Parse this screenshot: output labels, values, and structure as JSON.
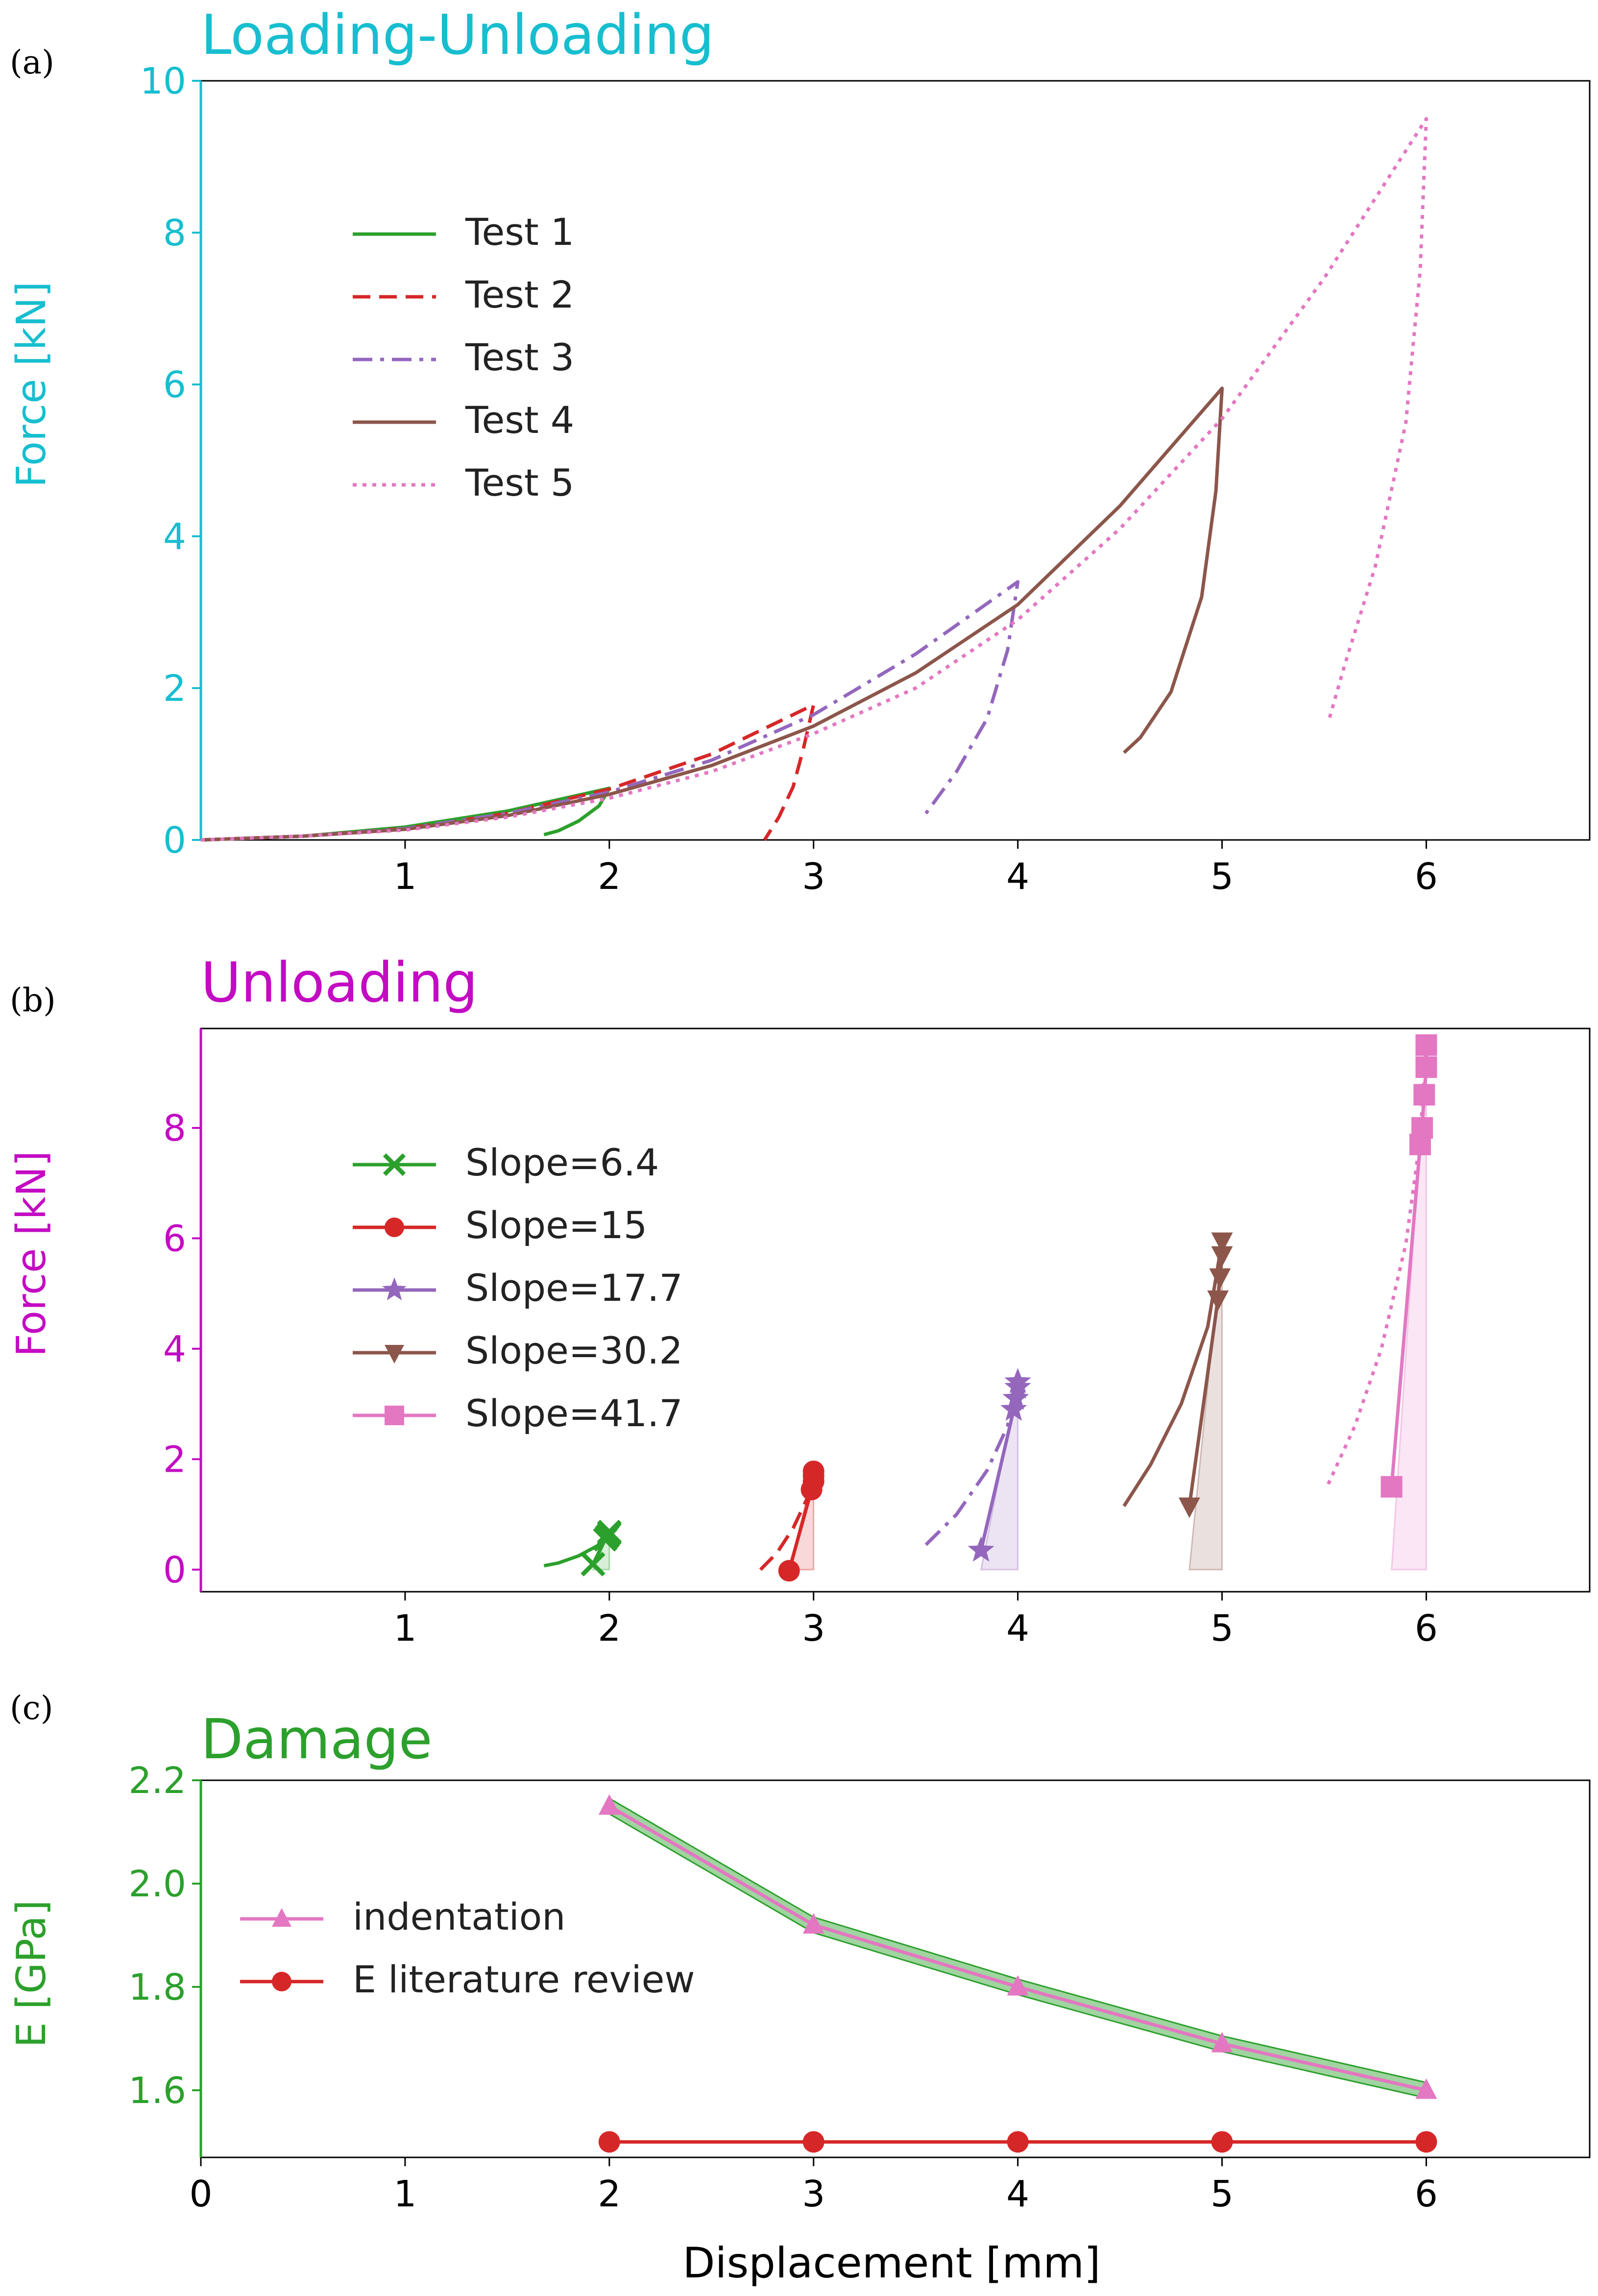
{
  "colors": {
    "panel_a": "#17becf",
    "panel_b": "#c30bc3",
    "panel_c": "#2ca02c",
    "test1": "#2ca02c",
    "test2": "#d62728",
    "test3": "#9467bd",
    "test4": "#8c564b",
    "test5": "#e377c2"
  },
  "chart_data": [
    {
      "panel_label": "(a)",
      "type": "line",
      "title": "Loading-Unloading",
      "ylabel": "Force [kN]",
      "xlim": [
        0,
        6.8
      ],
      "ylim": [
        0,
        10
      ],
      "xticks": [
        1,
        2,
        3,
        4,
        5,
        6
      ],
      "yticks": [
        0,
        2,
        4,
        6,
        8,
        10
      ],
      "legend_position": "upper-left",
      "series": [
        {
          "name": "Test 1",
          "color": "#2ca02c",
          "style": "solid",
          "x": [
            0,
            0.5,
            1,
            1.5,
            2,
            1.95,
            1.85,
            1.75,
            1.68
          ],
          "y": [
            0,
            0.05,
            0.17,
            0.38,
            0.68,
            0.45,
            0.25,
            0.12,
            0.07
          ]
        },
        {
          "name": "Test 2",
          "color": "#d62728",
          "style": "dashed",
          "x": [
            0,
            0.5,
            1,
            1.5,
            2,
            2.5,
            3,
            2.95,
            2.9,
            2.83,
            2.76
          ],
          "y": [
            0,
            0.05,
            0.15,
            0.35,
            0.67,
            1.13,
            1.78,
            1.2,
            0.7,
            0.3,
            0.0
          ]
        },
        {
          "name": "Test 3",
          "color": "#9467bd",
          "style": "dashdot",
          "x": [
            0,
            0.5,
            1,
            1.5,
            2,
            2.5,
            3,
            3.5,
            4,
            3.95,
            3.85,
            3.7,
            3.55
          ],
          "y": [
            0,
            0.05,
            0.15,
            0.35,
            0.63,
            1.05,
            1.65,
            2.45,
            3.4,
            2.5,
            1.6,
            0.9,
            0.35
          ]
        },
        {
          "name": "Test 4",
          "color": "#8c564b",
          "style": "solid",
          "x": [
            0,
            0.5,
            1,
            1.5,
            2,
            2.5,
            3,
            3.5,
            4,
            4.5,
            5,
            4.97,
            4.9,
            4.75,
            4.6,
            4.52
          ],
          "y": [
            0,
            0.05,
            0.14,
            0.32,
            0.6,
            0.98,
            1.5,
            2.2,
            3.1,
            4.4,
            5.95,
            4.6,
            3.2,
            1.95,
            1.35,
            1.15
          ]
        },
        {
          "name": "Test 5",
          "color": "#e377c2",
          "style": "dotted",
          "x": [
            0,
            0.5,
            1,
            1.5,
            2,
            2.5,
            3,
            3.5,
            4,
            4.5,
            5,
            5.5,
            6,
            5.97,
            5.9,
            5.75,
            5.6,
            5.52
          ],
          "y": [
            0,
            0.05,
            0.13,
            0.3,
            0.55,
            0.9,
            1.4,
            2.0,
            2.9,
            4.1,
            5.55,
            7.4,
            9.5,
            7.5,
            5.5,
            3.6,
            2.3,
            1.55
          ]
        }
      ]
    },
    {
      "panel_label": "(b)",
      "type": "line",
      "title": "Unloading",
      "ylabel": "Force [kN]",
      "xlim": [
        0,
        6.8
      ],
      "ylim": [
        -0.4,
        9.8
      ],
      "xticks": [
        1,
        2,
        3,
        4,
        5,
        6
      ],
      "yticks": [
        0,
        2,
        4,
        6,
        8
      ],
      "legend_position": "upper-left",
      "series": [
        {
          "name": "Slope=6.4",
          "color": "#2ca02c",
          "marker": "x",
          "curve_x": [
            1.68,
            1.75,
            1.85,
            1.95,
            2.0
          ],
          "curve_y": [
            0.07,
            0.12,
            0.25,
            0.45,
            0.68
          ],
          "points_x": [
            1.92,
            1.98,
            1.99,
            2.0,
            2.0
          ],
          "points_y": [
            0.1,
            0.55,
            0.6,
            0.65,
            0.68
          ],
          "band": [
            1.92,
            2.0
          ]
        },
        {
          "name": "Slope=15",
          "color": "#d62728",
          "marker": "o",
          "curve_x": [
            2.74,
            2.82,
            2.9,
            2.97,
            3.0
          ],
          "curve_y": [
            0.0,
            0.3,
            0.75,
            1.3,
            1.78
          ],
          "points_x": [
            2.88,
            2.99,
            3.0,
            3.0,
            3.0
          ],
          "points_y": [
            -0.02,
            1.45,
            1.6,
            1.7,
            1.78
          ],
          "band": [
            2.88,
            3.0
          ]
        },
        {
          "name": "Slope=17.7",
          "color": "#9467bd",
          "marker": "*",
          "curve_x": [
            3.55,
            3.7,
            3.85,
            3.95,
            4.0
          ],
          "curve_y": [
            0.45,
            1.0,
            1.8,
            2.6,
            3.4
          ],
          "points_x": [
            3.82,
            3.98,
            3.99,
            4.0,
            4.0
          ],
          "points_y": [
            0.35,
            2.9,
            3.1,
            3.3,
            3.4
          ],
          "band": [
            3.82,
            4.0
          ]
        },
        {
          "name": "Slope=30.2",
          "color": "#8c564b",
          "marker": "v",
          "curve_x": [
            4.52,
            4.65,
            4.8,
            4.93,
            5.0
          ],
          "curve_y": [
            1.15,
            1.9,
            3.0,
            4.4,
            5.95
          ],
          "points_x": [
            4.84,
            4.98,
            4.99,
            5.0,
            5.0
          ],
          "points_y": [
            1.15,
            4.9,
            5.3,
            5.7,
            5.95
          ],
          "band": [
            4.84,
            5.0
          ]
        },
        {
          "name": "Slope=41.7",
          "color": "#e377c2",
          "marker": "s",
          "curve_x": [
            5.52,
            5.65,
            5.78,
            5.9,
            5.97,
            6.0
          ],
          "curve_y": [
            1.55,
            2.6,
            4.0,
            5.9,
            7.8,
            9.5
          ],
          "points_x": [
            5.83,
            5.97,
            5.98,
            5.99,
            6.0,
            6.0
          ],
          "points_y": [
            1.5,
            7.7,
            8.0,
            8.6,
            9.1,
            9.5
          ],
          "band": [
            5.83,
            6.0
          ]
        }
      ]
    },
    {
      "panel_label": "(c)",
      "type": "line",
      "title": "Damage",
      "xlabel": "Displacement [mm]",
      "ylabel": "E [GPa]",
      "xlim": [
        0,
        6.8
      ],
      "ylim": [
        1.47,
        2.2
      ],
      "xticks": [
        0,
        1,
        2,
        3,
        4,
        5,
        6
      ],
      "yticks": [
        1.6,
        1.8,
        2.0,
        2.2
      ],
      "ytick_labels": [
        "1.6",
        "1.8",
        "2.0",
        "2.2"
      ],
      "legend_position": "center-left",
      "series": [
        {
          "name": " indentation",
          "color": "#e377c2",
          "marker": "^",
          "x": [
            2,
            3,
            4,
            5,
            6
          ],
          "y": [
            2.15,
            1.92,
            1.8,
            1.69,
            1.6
          ],
          "band_color": "#2ca02c",
          "band_halfwidth": 0.015
        },
        {
          "name": "E literature review",
          "color": "#d62728",
          "marker": "o",
          "x": [
            2,
            3,
            4,
            5,
            6
          ],
          "y": [
            1.5,
            1.5,
            1.5,
            1.5,
            1.5
          ]
        }
      ]
    }
  ]
}
